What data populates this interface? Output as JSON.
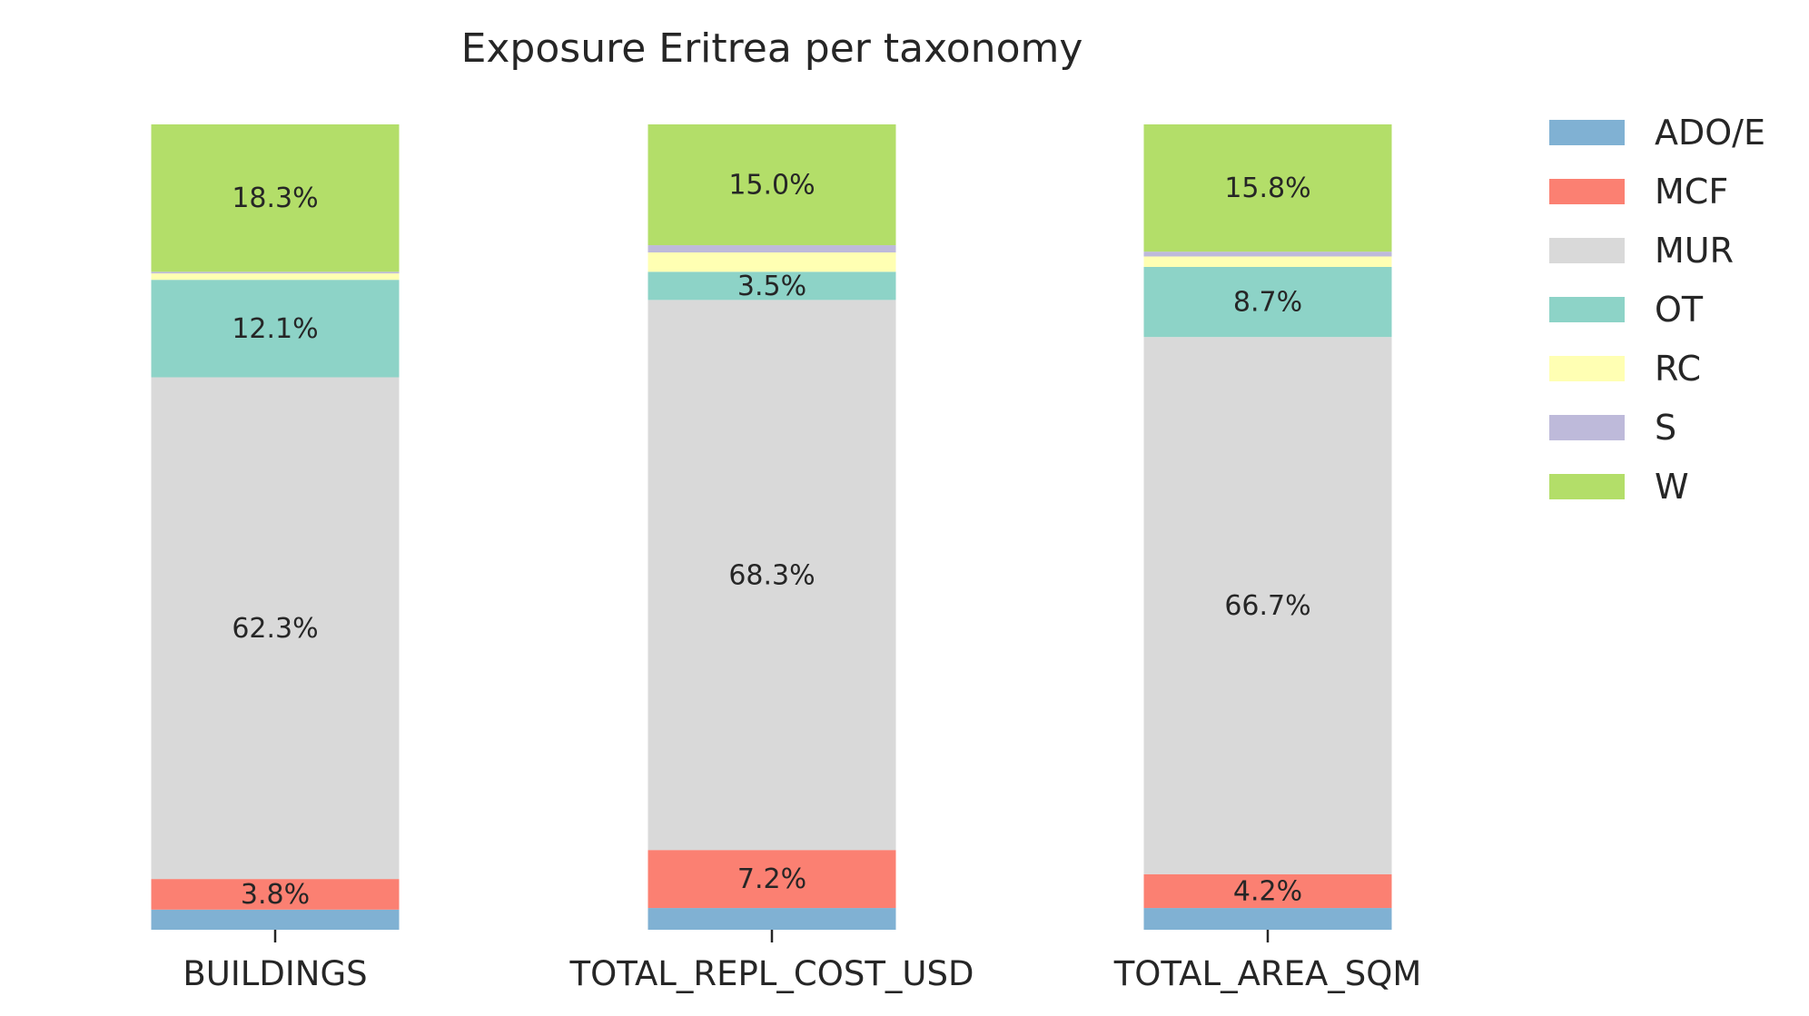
{
  "chart_data": {
    "type": "bar",
    "stacked": true,
    "normalized": true,
    "title": "Exposure Eritrea per taxonomy",
    "xlabel": "",
    "ylabel": "",
    "ylim": [
      0,
      100
    ],
    "grid": false,
    "legend_position": "right",
    "categories": [
      "BUILDINGS",
      "TOTAL_REPL_COST_USD",
      "TOTAL_AREA_SQM"
    ],
    "series": [
      {
        "name": "ADO/E",
        "color": "#80b1d3",
        "values": [
          2.5,
          2.7,
          2.7
        ],
        "labels": [
          "",
          "",
          ""
        ]
      },
      {
        "name": "MCF",
        "color": "#fb8072",
        "values": [
          3.8,
          7.2,
          4.2
        ],
        "labels": [
          "3.8%",
          "7.2%",
          "4.2%"
        ]
      },
      {
        "name": "MUR",
        "color": "#d9d9d9",
        "values": [
          62.3,
          68.3,
          66.7
        ],
        "labels": [
          "62.3%",
          "68.3%",
          "66.7%"
        ]
      },
      {
        "name": "OT",
        "color": "#8dd3c7",
        "values": [
          12.1,
          3.5,
          8.7
        ],
        "labels": [
          "12.1%",
          "3.5%",
          "8.7%"
        ]
      },
      {
        "name": "RC",
        "color": "#ffffb3",
        "values": [
          0.8,
          2.4,
          1.3
        ],
        "labels": [
          "",
          "",
          ""
        ]
      },
      {
        "name": "S",
        "color": "#bebada",
        "values": [
          0.2,
          0.9,
          0.6
        ],
        "labels": [
          "",
          "",
          ""
        ]
      },
      {
        "name": "W",
        "color": "#b3de69",
        "values": [
          18.3,
          15.0,
          15.8
        ],
        "labels": [
          "18.3%",
          "15.0%",
          "15.8%"
        ]
      }
    ]
  }
}
